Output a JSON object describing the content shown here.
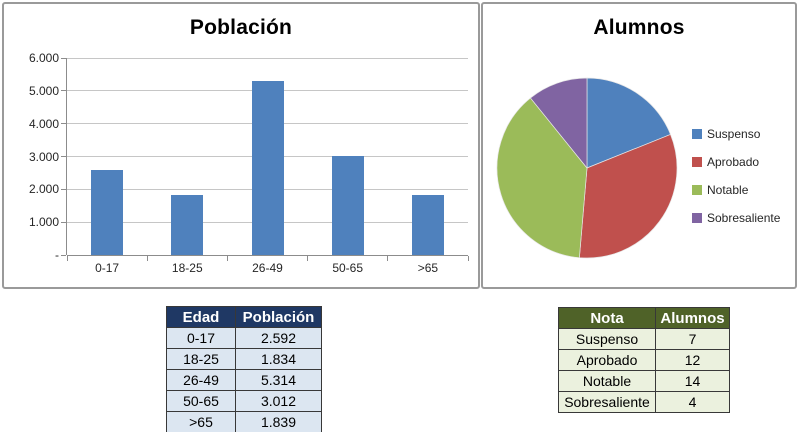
{
  "chart_data": [
    {
      "type": "bar",
      "title": "Población",
      "categories": [
        "0-17",
        "18-25",
        "26-49",
        "50-65",
        ">65"
      ],
      "values": [
        2592,
        1834,
        5314,
        3012,
        1839
      ],
      "xlabel": "",
      "ylabel": "",
      "ylim": [
        0,
        6000
      ],
      "ytick_step": 1000,
      "ytick_labels": [
        "-",
        "1.000",
        "2.000",
        "3.000",
        "4.000",
        "5.000",
        "6.000"
      ],
      "grid": true,
      "legend_position": "none",
      "bar_color": "#4f81bd"
    },
    {
      "type": "pie",
      "title": "Alumnos",
      "labels": [
        "Suspenso",
        "Aprobado",
        "Notable",
        "Sobresaliente"
      ],
      "values": [
        7,
        12,
        14,
        4
      ],
      "colors": [
        "#4f81bd",
        "#c0504d",
        "#9bbb59",
        "#8064a2"
      ],
      "legend_position": "right",
      "start_angle_deg": 0,
      "direction": "clockwise"
    }
  ],
  "tables": {
    "poblacion": {
      "headers": [
        "Edad",
        "Población"
      ],
      "rows": [
        [
          "0-17",
          "2.592"
        ],
        [
          "18-25",
          "1.834"
        ],
        [
          "26-49",
          "5.314"
        ],
        [
          "50-65",
          "3.012"
        ],
        [
          ">65",
          "1.839"
        ]
      ],
      "header_bg": "#1f3864",
      "row_bg": "#dce6f1"
    },
    "alumnos": {
      "headers": [
        "Nota",
        "Alumnos"
      ],
      "rows": [
        [
          "Suspenso",
          "7"
        ],
        [
          "Aprobado",
          "12"
        ],
        [
          "Notable",
          "14"
        ],
        [
          "Sobresaliente",
          "4"
        ]
      ],
      "header_bg": "#4f6228",
      "row_bg": "#ebf1de"
    }
  },
  "colors": {
    "bar_blue": "#4f81bd",
    "pie_blue": "#4f81bd",
    "pie_red": "#c0504d",
    "pie_green": "#9bbb59",
    "pie_purple": "#8064a2",
    "gridline": "#c6c6c6",
    "axis": "#8c8c8c",
    "panel_border": "#9a9a9a"
  }
}
